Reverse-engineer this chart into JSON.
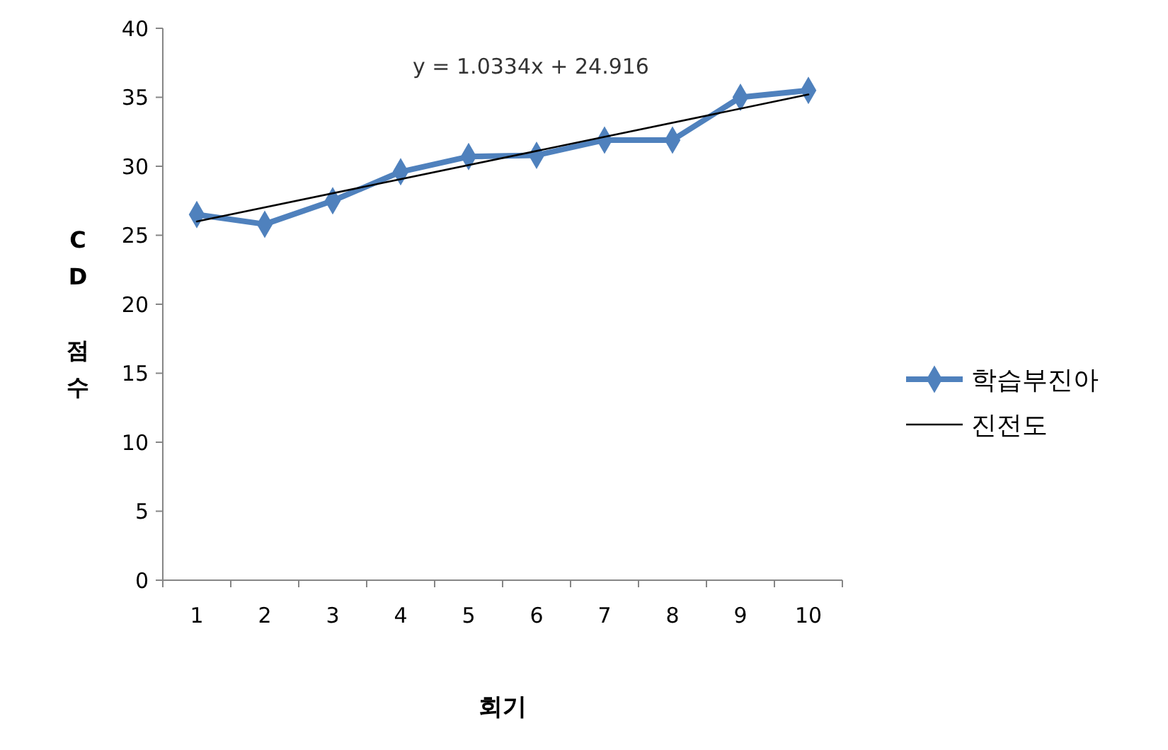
{
  "chart_data": {
    "type": "line",
    "xlabel": "회기",
    "ylabel": "CD 점수",
    "categories": [
      "1",
      "2",
      "3",
      "4",
      "5",
      "6",
      "7",
      "8",
      "9",
      "10"
    ],
    "series": [
      {
        "name": "학습부진아",
        "color": "#4f81bd",
        "values": [
          26.5,
          25.8,
          27.5,
          29.6,
          30.7,
          30.8,
          31.9,
          31.9,
          35.0,
          35.5
        ],
        "marker": "diamond"
      },
      {
        "name": "진전도",
        "color": "#000000",
        "type": "line",
        "x": [
          "1",
          "10"
        ],
        "values": [
          26.0,
          35.2
        ],
        "marker": "none"
      }
    ],
    "annotations": [
      "y = 1.0334x + 24.916"
    ],
    "ylim": [
      0,
      40
    ],
    "yticks": [
      0,
      5,
      10,
      15,
      20,
      25,
      30,
      35,
      40
    ],
    "grid": false,
    "legend": "right",
    "line_style": "solid"
  }
}
